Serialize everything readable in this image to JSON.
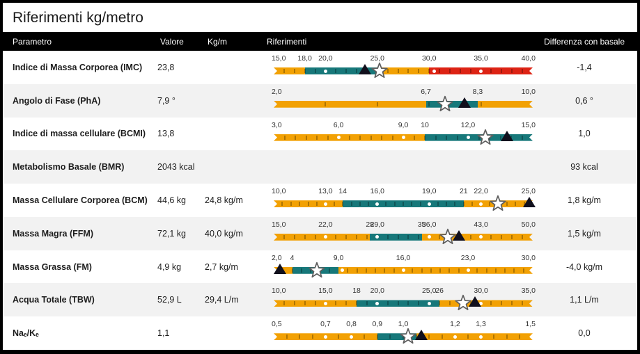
{
  "title": "Riferimenti kg/metro",
  "colors": {
    "orange": "#F2A104",
    "teal": "#17787A",
    "red": "#DD2314",
    "row_alt": "#F2F2F2",
    "header_bg": "#000000",
    "header_fg": "#FFFFFF",
    "triangle_marker": "#11101D",
    "star_fill": "#FFFFFF",
    "star_stroke": "#5E5E5E"
  },
  "icons": {
    "star": "star-marker-icon (previous/basal measurement)",
    "triangle": "triangle-marker-icon (current value)"
  },
  "header": {
    "parametro": "Parametro",
    "valore": "Valore",
    "kgm": "Kg/m",
    "riferimenti": "Riferimenti",
    "differenza": "Differenza con basale"
  },
  "rows": [
    {
      "parametro": "Indice di Massa Corporea (IMC)",
      "valore": "23,8",
      "kgm": "",
      "differenza": "-1,4",
      "bar": {
        "min": 15,
        "max": 40,
        "segments": [
          {
            "from": 15,
            "to": 18,
            "color": "orange"
          },
          {
            "from": 18,
            "to": 25,
            "color": "teal"
          },
          {
            "from": 25,
            "to": 30,
            "color": "orange"
          },
          {
            "from": 30,
            "to": 40,
            "color": "red"
          }
        ],
        "labels": [
          {
            "at": 15,
            "text": "15,0"
          },
          {
            "at": 18,
            "text": "18,0"
          },
          {
            "at": 20,
            "text": "20,0"
          },
          {
            "at": 25,
            "text": "25,0"
          },
          {
            "at": 30,
            "text": "30,0"
          },
          {
            "at": 35,
            "text": "35,0"
          },
          {
            "at": 40,
            "text": "40,0"
          }
        ],
        "dots": [
          20,
          30.5,
          35
        ],
        "tick_count": 25,
        "star": 25.2,
        "triangle": 23.8
      }
    },
    {
      "parametro": "Angolo di Fase (PhA)",
      "valore": "7,9 °",
      "kgm": "",
      "differenza": "0,6 °",
      "bar": {
        "min": 2,
        "max": 10,
        "segments": [
          {
            "from": 2,
            "to": 6.7,
            "color": "orange"
          },
          {
            "from": 6.7,
            "to": 8.3,
            "color": "teal"
          },
          {
            "from": 8.3,
            "to": 10,
            "color": "orange"
          }
        ],
        "labels": [
          {
            "at": 2,
            "text": "2,0"
          },
          {
            "at": 6.7,
            "text": "6,7"
          },
          {
            "at": 8.3,
            "text": "8,3"
          },
          {
            "at": 10,
            "text": "10,0"
          }
        ],
        "dots": [],
        "tick_count": 5,
        "star": 7.3,
        "triangle": 7.9
      }
    },
    {
      "parametro": "Indice di massa cellulare (BCMI)",
      "valore": "13,8",
      "kgm": "",
      "differenza": "1,0",
      "bar": {
        "min": 3,
        "max": 15,
        "segments": [
          {
            "from": 3,
            "to": 10,
            "color": "orange"
          },
          {
            "from": 10,
            "to": 15,
            "color": "teal"
          }
        ],
        "labels": [
          {
            "at": 3,
            "text": "3,0"
          },
          {
            "at": 6,
            "text": "6,0"
          },
          {
            "at": 9,
            "text": "9,0"
          },
          {
            "at": 10,
            "text": "10"
          },
          {
            "at": 12,
            "text": "12,0"
          },
          {
            "at": 15,
            "text": "15,0"
          }
        ],
        "dots": [
          6,
          9,
          12
        ],
        "tick_count": 24,
        "star": 12.8,
        "triangle": 13.8
      }
    },
    {
      "parametro": "Metabolismo Basale (BMR)",
      "valore": "2043 kcal",
      "kgm": "",
      "differenza": "93 kcal",
      "bar": null
    },
    {
      "parametro": "Massa Cellulare Corporea (BCM)",
      "valore": "44,6 kg",
      "kgm": "24,8 kg/m",
      "differenza": "1,8 kg/m",
      "bar": {
        "min": 10,
        "max": 25,
        "segments": [
          {
            "from": 10,
            "to": 14,
            "color": "orange"
          },
          {
            "from": 14,
            "to": 21,
            "color": "teal"
          },
          {
            "from": 21,
            "to": 25,
            "color": "orange"
          }
        ],
        "labels": [
          {
            "at": 10,
            "text": "10,0"
          },
          {
            "at": 13,
            "text": "13,0"
          },
          {
            "at": 14,
            "text": "14"
          },
          {
            "at": 16,
            "text": "16,0"
          },
          {
            "at": 19,
            "text": "19,0"
          },
          {
            "at": 21,
            "text": "21"
          },
          {
            "at": 22,
            "text": "22,0"
          },
          {
            "at": 25,
            "text": "25,0"
          }
        ],
        "dots": [
          13,
          16,
          19,
          22
        ],
        "tick_count": 30,
        "star": 23,
        "triangle": 24.8
      }
    },
    {
      "parametro": "Massa Magra (FFM)",
      "valore": "72,1 kg",
      "kgm": "40,0 kg/m",
      "differenza": "1,5 kg/m",
      "bar": {
        "min": 15,
        "max": 50,
        "segments": [
          {
            "from": 15,
            "to": 28,
            "color": "orange"
          },
          {
            "from": 28,
            "to": 35,
            "color": "teal"
          },
          {
            "from": 35,
            "to": 50,
            "color": "orange"
          }
        ],
        "labels": [
          {
            "at": 15,
            "text": "15,0"
          },
          {
            "at": 22,
            "text": "22,0"
          },
          {
            "at": 28,
            "text": "28"
          },
          {
            "at": 29,
            "text": "29,0"
          },
          {
            "at": 35,
            "text": "35"
          },
          {
            "at": 36,
            "text": "36,0"
          },
          {
            "at": 43,
            "text": "43,0"
          },
          {
            "at": 50,
            "text": "50,0"
          }
        ],
        "dots": [
          22,
          29,
          36,
          43
        ],
        "tick_count": 25,
        "star": 38.5,
        "triangle": 40
      }
    },
    {
      "parametro": "Massa Grassa (FM)",
      "valore": "4,9 kg",
      "kgm": "2,7 kg/m",
      "differenza": "-4,0 kg/m",
      "bar": {
        "min": 2,
        "max": 30,
        "segments": [
          {
            "from": 2,
            "to": 4,
            "color": "orange"
          },
          {
            "from": 4,
            "to": 9,
            "color": "teal"
          },
          {
            "from": 9,
            "to": 30,
            "color": "orange"
          }
        ],
        "labels": [
          {
            "at": 2,
            "text": "2,0"
          },
          {
            "at": 4,
            "text": "4"
          },
          {
            "at": 9,
            "text": "9,0"
          },
          {
            "at": 16,
            "text": "16,0"
          },
          {
            "at": 23,
            "text": "23,0"
          },
          {
            "at": 30,
            "text": "30,0"
          }
        ],
        "dots": [
          9.4,
          16,
          23
        ],
        "tick_count": 28,
        "star": 6.7,
        "triangle": 2.7
      }
    },
    {
      "parametro": "Acqua Totale (TBW)",
      "valore": "52,9 L",
      "kgm": "29,4 L/m",
      "differenza": "1,1 L/m",
      "bar": {
        "min": 10,
        "max": 35,
        "segments": [
          {
            "from": 10,
            "to": 18,
            "color": "orange"
          },
          {
            "from": 18,
            "to": 26,
            "color": "teal"
          },
          {
            "from": 26,
            "to": 35,
            "color": "orange"
          }
        ],
        "labels": [
          {
            "at": 10,
            "text": "10,0"
          },
          {
            "at": 15,
            "text": "15,0"
          },
          {
            "at": 18,
            "text": "18"
          },
          {
            "at": 20,
            "text": "20,0"
          },
          {
            "at": 25,
            "text": "25,0"
          },
          {
            "at": 26,
            "text": "26"
          },
          {
            "at": 30,
            "text": "30,0"
          },
          {
            "at": 35,
            "text": "35,0"
          }
        ],
        "dots": [
          15,
          20,
          25,
          30
        ],
        "tick_count": 25,
        "star": 28.3,
        "triangle": 29.4
      }
    },
    {
      "parametro": "Naₑ/Kₑ",
      "valore": "1,1",
      "kgm": "",
      "differenza": "0,0",
      "bar": {
        "min": 0.5,
        "max": 1.5,
        "segments": [
          {
            "from": 0.5,
            "to": 0.9,
            "color": "orange"
          },
          {
            "from": 0.9,
            "to": 1.05,
            "color": "teal"
          },
          {
            "from": 1.05,
            "to": 1.5,
            "color": "orange"
          }
        ],
        "labels": [
          {
            "at": 0.5,
            "text": "0,5"
          },
          {
            "at": 0.7,
            "text": "0,7"
          },
          {
            "at": 0.8,
            "text": "0,8"
          },
          {
            "at": 0.9,
            "text": "0,9"
          },
          {
            "at": 1,
            "text": "1,0"
          },
          {
            "at": 1.2,
            "text": "1,2"
          },
          {
            "at": 1.3,
            "text": "1,3"
          },
          {
            "at": 1.5,
            "text": "1,5"
          }
        ],
        "dots": [
          0.7,
          0.8,
          1.2,
          1.3
        ],
        "tick_count": 20,
        "star": 1.02,
        "triangle": 1.07
      }
    }
  ]
}
